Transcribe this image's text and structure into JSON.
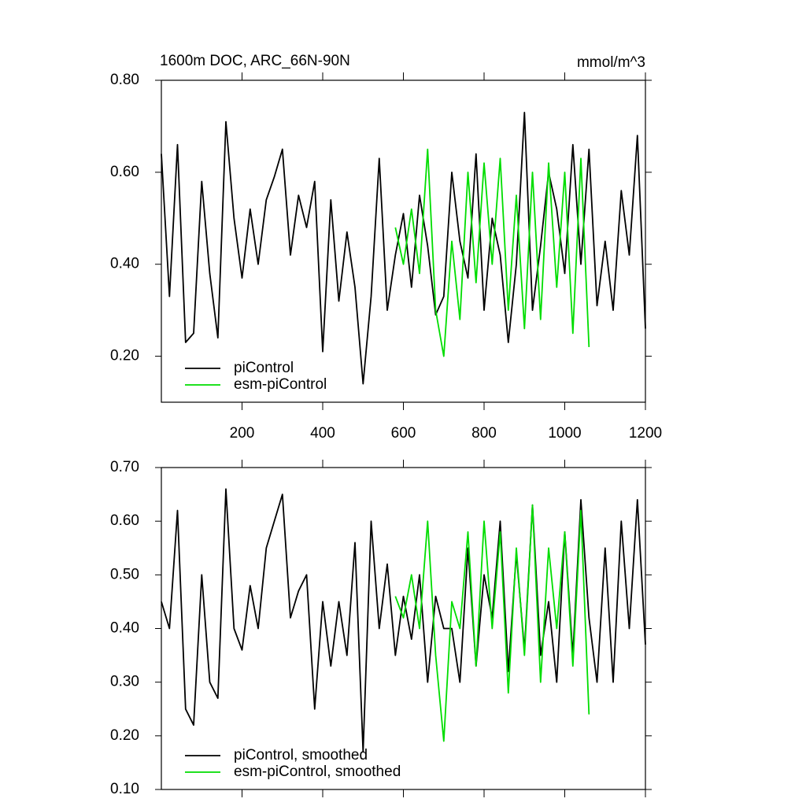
{
  "chart_data": [
    {
      "type": "line",
      "title": "1600m DOC, ARC_66N-90N",
      "units": "mmol/m^3",
      "xlim": [
        0,
        1200
      ],
      "xticks": [
        200,
        400,
        600,
        800,
        1000,
        1200
      ],
      "ylim": [
        0.1,
        0.8
      ],
      "yticks": [
        {
          "value": 0.2,
          "label": "0.20"
        },
        {
          "value": 0.4,
          "label": "0.40"
        },
        {
          "value": 0.6,
          "label": "0.60"
        },
        {
          "value": 0.8,
          "label": "0.80"
        }
      ],
      "legend": "lower-left",
      "series": [
        {
          "name": "piControl",
          "color": "#000000",
          "x": [
            0,
            20,
            40,
            60,
            80,
            100,
            120,
            140,
            160,
            180,
            200,
            220,
            240,
            260,
            280,
            300,
            320,
            340,
            360,
            380,
            400,
            420,
            440,
            460,
            480,
            500,
            520,
            540,
            560,
            580,
            600,
            620,
            640,
            660,
            680,
            700,
            720,
            740,
            760,
            780,
            800,
            820,
            840,
            860,
            880,
            900,
            920,
            940,
            960,
            980,
            1000,
            1020,
            1040,
            1060,
            1080,
            1100,
            1120,
            1140,
            1160,
            1180,
            1200
          ],
          "values": [
            0.64,
            0.33,
            0.66,
            0.23,
            0.25,
            0.58,
            0.38,
            0.24,
            0.71,
            0.5,
            0.37,
            0.52,
            0.4,
            0.54,
            0.59,
            0.65,
            0.42,
            0.55,
            0.48,
            0.58,
            0.21,
            0.54,
            0.32,
            0.47,
            0.35,
            0.14,
            0.33,
            0.63,
            0.3,
            0.42,
            0.51,
            0.35,
            0.55,
            0.44,
            0.29,
            0.33,
            0.6,
            0.45,
            0.37,
            0.64,
            0.3,
            0.5,
            0.42,
            0.23,
            0.4,
            0.73,
            0.3,
            0.44,
            0.6,
            0.52,
            0.38,
            0.66,
            0.4,
            0.65,
            0.31,
            0.45,
            0.3,
            0.56,
            0.42,
            0.68,
            0.26
          ]
        },
        {
          "name": "esm-piControl",
          "color": "#00dd00",
          "x": [
            580,
            600,
            620,
            640,
            660,
            680,
            700,
            720,
            740,
            760,
            780,
            800,
            820,
            840,
            860,
            880,
            900,
            920,
            940,
            960,
            980,
            1000,
            1020,
            1040,
            1060
          ],
          "values": [
            0.48,
            0.4,
            0.52,
            0.38,
            0.65,
            0.3,
            0.2,
            0.45,
            0.28,
            0.6,
            0.36,
            0.62,
            0.4,
            0.63,
            0.3,
            0.55,
            0.26,
            0.6,
            0.28,
            0.62,
            0.35,
            0.6,
            0.25,
            0.63,
            0.22
          ]
        }
      ]
    },
    {
      "type": "line",
      "xlim": [
        0,
        1200
      ],
      "ylim": [
        0.1,
        0.7
      ],
      "yticks": [
        {
          "value": 0.1,
          "label": "0.10"
        },
        {
          "value": 0.2,
          "label": "0.20"
        },
        {
          "value": 0.3,
          "label": "0.30"
        },
        {
          "value": 0.4,
          "label": "0.40"
        },
        {
          "value": 0.5,
          "label": "0.50"
        },
        {
          "value": 0.6,
          "label": "0.60"
        },
        {
          "value": 0.7,
          "label": "0.70"
        }
      ],
      "legend": "lower-left",
      "series": [
        {
          "name": "piControl, smoothed",
          "color": "#000000",
          "x": [
            0,
            20,
            40,
            60,
            80,
            100,
            120,
            140,
            160,
            180,
            200,
            220,
            240,
            260,
            280,
            300,
            320,
            340,
            360,
            380,
            400,
            420,
            440,
            460,
            480,
            500,
            520,
            540,
            560,
            580,
            600,
            620,
            640,
            660,
            680,
            700,
            720,
            740,
            760,
            780,
            800,
            820,
            840,
            860,
            880,
            900,
            920,
            940,
            960,
            980,
            1000,
            1020,
            1040,
            1060,
            1080,
            1100,
            1120,
            1140,
            1160,
            1180,
            1200
          ],
          "values": [
            0.45,
            0.4,
            0.62,
            0.25,
            0.22,
            0.5,
            0.3,
            0.27,
            0.66,
            0.4,
            0.36,
            0.48,
            0.4,
            0.55,
            0.6,
            0.65,
            0.42,
            0.47,
            0.5,
            0.25,
            0.45,
            0.33,
            0.45,
            0.35,
            0.56,
            0.17,
            0.6,
            0.4,
            0.52,
            0.35,
            0.46,
            0.38,
            0.5,
            0.3,
            0.46,
            0.4,
            0.4,
            0.3,
            0.55,
            0.33,
            0.5,
            0.42,
            0.6,
            0.32,
            0.54,
            0.36,
            0.63,
            0.35,
            0.45,
            0.3,
            0.58,
            0.35,
            0.64,
            0.42,
            0.3,
            0.55,
            0.3,
            0.6,
            0.4,
            0.64,
            0.37
          ]
        },
        {
          "name": "esm-piControl, smoothed",
          "color": "#00dd00",
          "x": [
            580,
            600,
            620,
            640,
            660,
            680,
            700,
            720,
            740,
            760,
            780,
            800,
            820,
            840,
            860,
            880,
            900,
            920,
            940,
            960,
            980,
            1000,
            1020,
            1040,
            1060
          ],
          "values": [
            0.46,
            0.42,
            0.5,
            0.4,
            0.6,
            0.35,
            0.19,
            0.45,
            0.4,
            0.58,
            0.33,
            0.6,
            0.4,
            0.58,
            0.28,
            0.55,
            0.35,
            0.63,
            0.3,
            0.55,
            0.4,
            0.58,
            0.33,
            0.62,
            0.24
          ]
        }
      ]
    }
  ]
}
